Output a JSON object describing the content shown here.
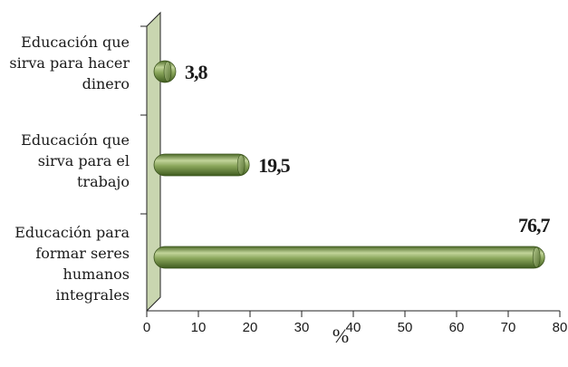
{
  "chart_data": {
    "type": "bar",
    "orientation": "horizontal",
    "categories": [
      [
        "Educación que",
        "sirva para hacer",
        "dinero"
      ],
      [
        "Educación que",
        "sirva para el",
        "trabajo"
      ],
      [
        "Educación para",
        "formar seres",
        "humanos",
        "integrales"
      ]
    ],
    "values": [
      3.8,
      19.5,
      76.7
    ],
    "value_labels": [
      "3,8",
      "19,5",
      "76,7"
    ],
    "xlabel": "%",
    "xlim": [
      0,
      80
    ],
    "xticks": [
      0,
      10,
      20,
      30,
      40,
      50,
      60,
      70,
      80
    ],
    "grid": false,
    "bar_color": "#6b8a3f",
    "wall_color": "#c9d6b0"
  }
}
